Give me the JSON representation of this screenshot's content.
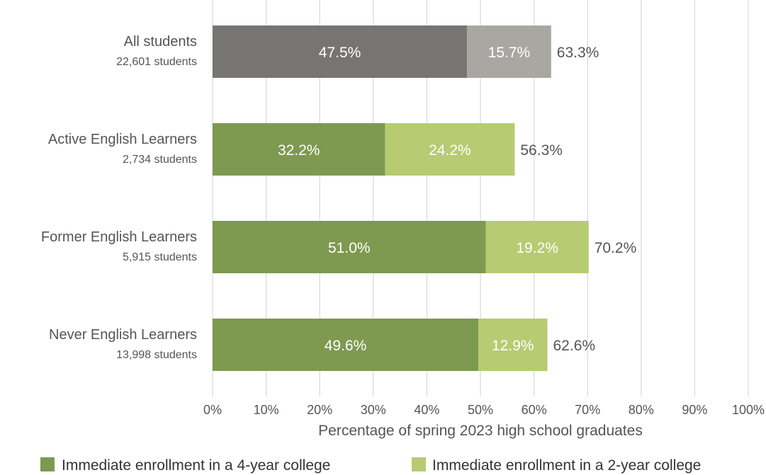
{
  "chart_data": {
    "type": "bar",
    "orientation": "horizontal",
    "stacked": true,
    "xlabel": "Percentage of spring 2023 high school graduates",
    "xlim": [
      0,
      100
    ],
    "x_ticks": [
      "0%",
      "10%",
      "20%",
      "30%",
      "40%",
      "50%",
      "60%",
      "70%",
      "80%",
      "90%",
      "100%"
    ],
    "grid": "vertical",
    "legend_position": "bottom",
    "categories": [
      {
        "label": "All students",
        "sublabel": "22,601 students",
        "four_year": 47.5,
        "two_year": 15.7,
        "four_label": "47.5%",
        "two_label": "15.7%",
        "total_label": "63.3%",
        "colors": [
          "#767573",
          "#a8a7a2"
        ]
      },
      {
        "label": "Active English Learners",
        "sublabel": "2,734 students",
        "four_year": 32.2,
        "two_year": 24.2,
        "four_label": "32.2%",
        "two_label": "24.2%",
        "total_label": "56.3%",
        "colors": [
          "#7d9a50",
          "#b7cb72"
        ]
      },
      {
        "label": "Former English Learners",
        "sublabel": "5,915 students",
        "four_year": 51.0,
        "two_year": 19.2,
        "four_label": "51.0%",
        "two_label": "19.2%",
        "total_label": "70.2%",
        "colors": [
          "#7d9a50",
          "#b7cb72"
        ]
      },
      {
        "label": "Never English Learners",
        "sublabel": "13,998 students",
        "four_year": 49.6,
        "two_year": 12.9,
        "four_label": "49.6%",
        "two_label": "12.9%",
        "total_label": "62.6%",
        "colors": [
          "#7d9a50",
          "#b7cb72"
        ]
      }
    ],
    "series": [
      {
        "name": "Immediate enrollment in a 4-year college",
        "color": "#7d9a50"
      },
      {
        "name": "Immediate enrollment in a 2-year college",
        "color": "#b7cb72"
      }
    ],
    "gridline_color": "#d9d9d9"
  }
}
